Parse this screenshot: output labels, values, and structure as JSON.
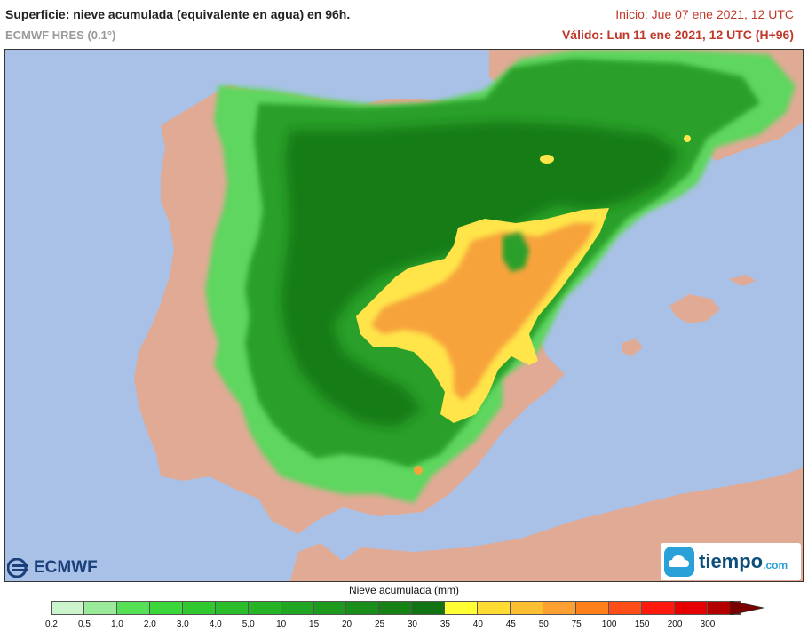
{
  "header": {
    "title": "Superficie: nieve acumulada (equivalente en agua) en 96h.",
    "model": "ECMWF HRES (0.1°)",
    "init": "Inicio: Jue 07 ene 2021, 12 UTC",
    "valid": "Válido: Lun 11 ene 2021, 12 UTC (H+96)"
  },
  "logos": {
    "ecmwf": "ECMWF",
    "tiempo": "tiempo",
    "tiempo_suffix": ".com"
  },
  "legend": {
    "title": "Nieve acumulada (mm)",
    "ticks": [
      "0,2",
      "0,5",
      "1,0",
      "2,0",
      "3,0",
      "4,0",
      "5,0",
      "10",
      "15",
      "20",
      "25",
      "30",
      "35",
      "40",
      "45",
      "50",
      "75",
      "100",
      "150",
      "200",
      "300"
    ],
    "colors": [
      "#ccf5cc",
      "#99eb99",
      "#55e055",
      "#3ad63a",
      "#30c830",
      "#2abf2a",
      "#26b326",
      "#21a621",
      "#1e9a1e",
      "#1a8e1a",
      "#168216",
      "#117311",
      "#ffff33",
      "#ffdc33",
      "#ffbf33",
      "#ffa033",
      "#ff7f1a",
      "#ff4d1a",
      "#ff1a0d",
      "#e60000",
      "#b30000"
    ]
  },
  "colors": {
    "sea": "#a9c1e6",
    "land": "#e1aa95",
    "snow_light": "#5fd65f",
    "snow_mid": "#2ca02c",
    "snow_dark": "#167d16",
    "snow_yellow": "#ffe54a",
    "snow_orange": "#f7a33a"
  }
}
